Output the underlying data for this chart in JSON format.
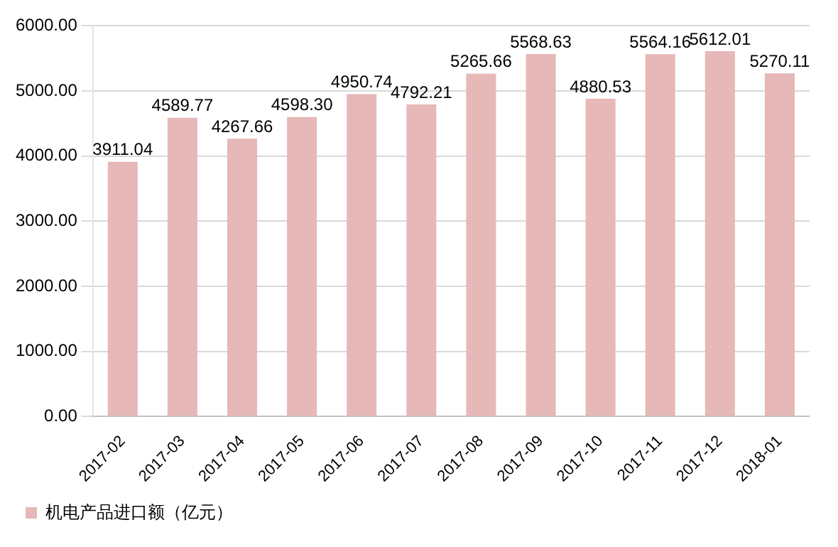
{
  "chart_data": {
    "type": "bar",
    "categories": [
      "2017-02",
      "2017-03",
      "2017-04",
      "2017-05",
      "2017-06",
      "2017-07",
      "2017-08",
      "2017-09",
      "2017-10",
      "2017-11",
      "2017-12",
      "2018-01"
    ],
    "series": [
      {
        "name": "机电产品进口额（亿元）",
        "color": "#e6b8b7",
        "values": [
          3911.04,
          4589.77,
          4267.66,
          4598.3,
          4950.74,
          4792.21,
          5265.66,
          5568.63,
          4880.53,
          5564.16,
          5612.01,
          5270.11
        ],
        "value_labels": [
          "3911.04",
          "4589.77",
          "4267.66",
          "4598.30",
          "4950.74",
          "4792.21",
          "5265.66",
          "5568.63",
          "4880.53",
          "5564.16",
          "5612.01",
          "5270.11"
        ]
      }
    ],
    "ylim": [
      0,
      6000
    ],
    "yticks": [
      {
        "value": 0,
        "label": "0.00"
      },
      {
        "value": 1000,
        "label": "1000.00"
      },
      {
        "value": 2000,
        "label": "2000.00"
      },
      {
        "value": 3000,
        "label": "3000.00"
      },
      {
        "value": 4000,
        "label": "4000.00"
      },
      {
        "value": 5000,
        "label": "5000.00"
      },
      {
        "value": 6000,
        "label": "6000.00"
      }
    ],
    "grid": "y",
    "legend": "bottom"
  }
}
